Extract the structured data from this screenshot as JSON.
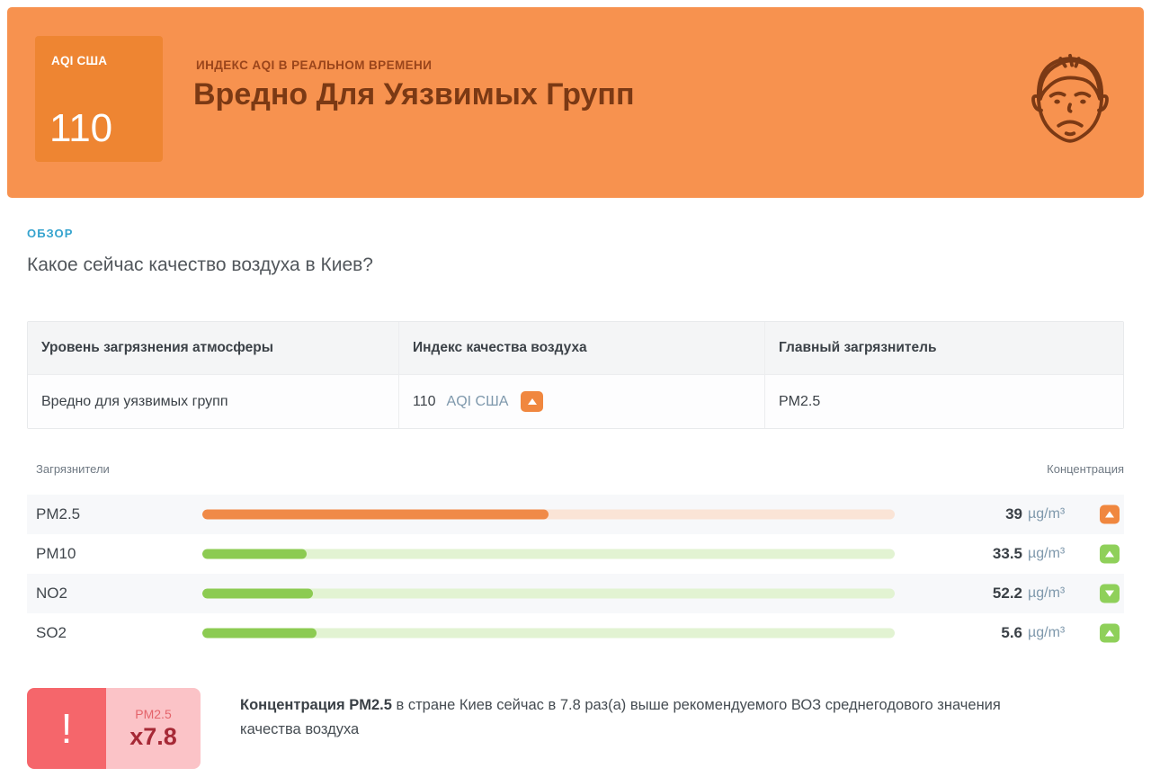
{
  "header": {
    "badge": {
      "label": "AQI США",
      "value": "110"
    },
    "subtitle": "ИНДЕКС AQI В РЕАЛЬНОМ ВРЕМЕНИ",
    "title": "Вредно Для Уязвимых Групп",
    "face_icon": "sad-face-icon"
  },
  "overview": {
    "section_label": "ОБЗОР",
    "question": "Какое сейчас качество воздуха в Киев?"
  },
  "summary_table": {
    "columns": [
      "Уровень загрязнения атмосферы",
      "Индекс качества воздуха",
      "Главный загрязнитель"
    ],
    "row": {
      "pollution_level": "Вредно для уязвимых групп",
      "aqi_value": "110",
      "aqi_label": "AQI США",
      "trend": "up",
      "main_pollutant": "PM2.5"
    }
  },
  "pollutants": {
    "header_left": "Загрязнители",
    "header_right": "Концентрация",
    "rows": [
      {
        "name": "PM2.5",
        "value": "39",
        "unit": "µg/m³",
        "trend": "up",
        "severity": "orange",
        "bar_percent": 50
      },
      {
        "name": "PM10",
        "value": "33.5",
        "unit": "µg/m³",
        "trend": "up",
        "severity": "green",
        "bar_percent": 15
      },
      {
        "name": "NO2",
        "value": "52.2",
        "unit": "µg/m³",
        "trend": "down",
        "severity": "green",
        "bar_percent": 16
      },
      {
        "name": "SO2",
        "value": "5.6",
        "unit": "µg/m³",
        "trend": "up",
        "severity": "green",
        "bar_percent": 16.5
      }
    ]
  },
  "who_alert": {
    "exclamation": "!",
    "pollutant": "PM2.5",
    "multiplier": "x7.8",
    "text_bold": "Концентрация PM2.5",
    "text_rest": " в стране Киев сейчас в 7.8 раз(а) выше рекомендуемого ВОЗ среднегодового значения качества воздуха"
  },
  "colors": {
    "header_bg": "#F7924F",
    "header_badge_bg": "#EE8532",
    "header_text": "#7B3914",
    "accent_blue": "#35A3CE",
    "orange": "#F0873F",
    "orange_track": "#FAE4D6",
    "green": "#8CCB52",
    "green_track": "#E2F3D2",
    "alert_red": "#F5666B",
    "alert_pink": "#FBC3C7",
    "alert_dark_red": "#A62936",
    "unit_text": "#7E98AC"
  }
}
